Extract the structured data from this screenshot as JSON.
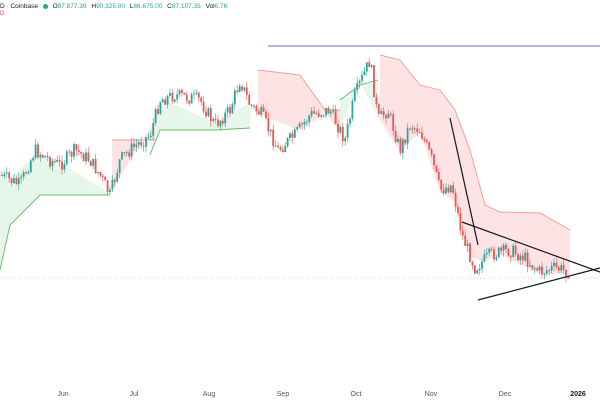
{
  "header": {
    "symbol_suffix": "D · Coinbase",
    "ohlc": [
      {
        "label": "O",
        "value": "87,877.39"
      },
      {
        "label": "H",
        "value": "90,325.00"
      },
      {
        "label": "L",
        "value": "86,675.00"
      },
      {
        "label": "C",
        "value": "87,107.35"
      },
      {
        "label": "Vol",
        "value": "6.7K"
      }
    ],
    "sub_label": "D"
  },
  "colors": {
    "up": "#26a69a",
    "down": "#ef5350",
    "support_fill": "#e6f6ea",
    "resistance_fill": "#fde3e3",
    "support_line": "#66bb6a",
    "resistance_line": "#ef9a9a",
    "horizontal_level": "#5c6bc0",
    "pattern_line": "#131722",
    "price_dotted": "#c8c8c8"
  },
  "chart_data": {
    "type": "candlestick",
    "x_tick_labels": [
      "Jun",
      "Jul",
      "Aug",
      "Sep",
      "Oct",
      "Nov",
      "Dec",
      "2026"
    ],
    "price_range": [
      77000,
      130000
    ],
    "horizontal_level": 124000,
    "last_close": 87107.35,
    "overlays": [
      "supertrend",
      "horizontal resistance line",
      "descending trendline",
      "symmetrical triangle"
    ]
  }
}
